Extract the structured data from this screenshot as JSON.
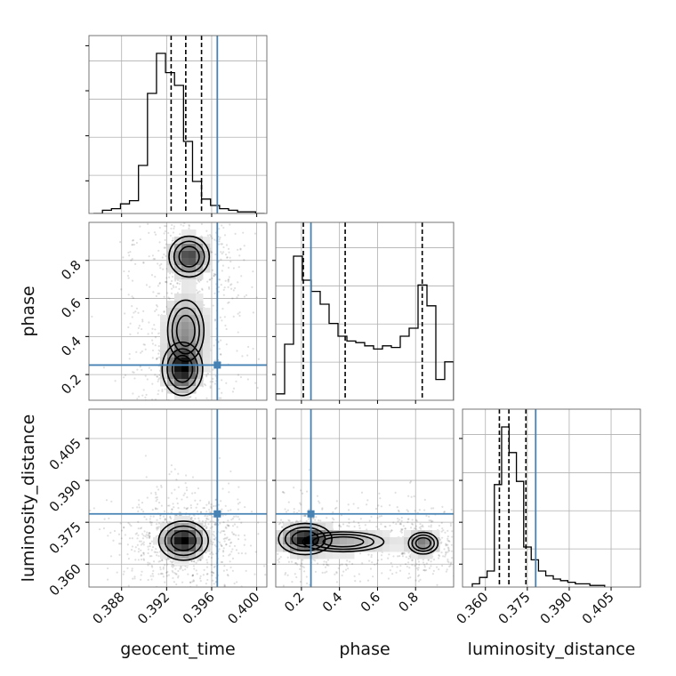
{
  "chart_data": {
    "type": "corner",
    "parameters": [
      "geocent_time",
      "phase",
      "luminosity_distance"
    ],
    "labels": {
      "geocent_time": "geocent_time",
      "phase": "phase",
      "luminosity_distance": "luminosity_distance"
    },
    "ranges": {
      "geocent_time": [
        0.3851,
        0.4009
      ],
      "phase": [
        0.065,
        1.0
      ],
      "luminosity_distance": [
        0.3518,
        0.4155
      ]
    },
    "ticks": {
      "geocent_time": [
        0.388,
        0.392,
        0.396,
        0.4
      ],
      "phase": [
        0.2,
        0.4,
        0.6,
        0.8
      ],
      "luminosity_distance": [
        0.36,
        0.375,
        0.39,
        0.405
      ]
    },
    "tick_labels": {
      "geocent_time": [
        "0.388",
        "0.392",
        "0.396",
        "0.400"
      ],
      "phase": [
        "0.2",
        "0.4",
        "0.6",
        "0.8"
      ],
      "luminosity_distance": [
        "0.360",
        "0.375",
        "0.390",
        "0.405"
      ]
    },
    "truths": {
      "geocent_time": 0.3965,
      "phase": 0.25,
      "luminosity_distance": 0.378
    },
    "quantiles": {
      "geocent_time": [
        0.3924,
        0.3937,
        0.3951
      ],
      "phase": [
        0.21,
        0.43,
        0.835
      ],
      "luminosity_distance": [
        0.365,
        0.3684,
        0.3745
      ]
    },
    "histograms": {
      "geocent_time": {
        "edges": [
          0.3855,
          0.3863,
          0.3871,
          0.3879,
          0.3887,
          0.3895,
          0.3903,
          0.3911,
          0.3919,
          0.3927,
          0.3935,
          0.3943,
          0.3951,
          0.3959,
          0.3967,
          0.3975,
          0.3983,
          0.3991,
          0.3999,
          0.4007
        ],
        "counts": [
          0,
          2,
          3,
          6,
          8,
          30,
          75,
          100,
          88,
          80,
          45,
          20,
          9,
          5,
          3,
          2,
          1,
          1,
          0
        ],
        "max": 100
      },
      "phase": {
        "edges": [
          0.065,
          0.1117,
          0.1585,
          0.2053,
          0.252,
          0.2987,
          0.3455,
          0.3923,
          0.439,
          0.4857,
          0.5325,
          0.5793,
          0.626,
          0.6728,
          0.7195,
          0.7662,
          0.813,
          0.8598,
          0.9065,
          0.9532,
          1.0
        ],
        "counts": [
          4,
          35,
          90,
          75,
          68,
          60,
          48,
          40,
          37,
          36,
          34,
          32,
          34,
          33,
          40,
          45,
          72,
          59,
          13,
          24
        ],
        "max": 100
      },
      "luminosity_distance": {
        "edges": [
          0.3553,
          0.3579,
          0.3606,
          0.3632,
          0.3658,
          0.3685,
          0.3711,
          0.3737,
          0.3764,
          0.379,
          0.3816,
          0.3843,
          0.3869,
          0.3895,
          0.3922,
          0.3948,
          0.3974,
          0.4001,
          0.4027
        ],
        "counts": [
          2,
          6,
          10,
          64,
          100,
          84,
          66,
          25,
          17,
          10,
          7,
          5,
          4,
          3,
          2,
          2,
          1,
          1
        ],
        "max": 100
      }
    },
    "hist2d": {
      "geocent_time__phase": {
        "blobs": [
          {
            "cx": 0.3934,
            "cy": 0.23,
            "sx": 0.0009,
            "sy": 0.07,
            "w": 1.0
          },
          {
            "cx": 0.3937,
            "cy": 0.43,
            "sx": 0.0012,
            "sy": 0.12,
            "w": 0.45
          },
          {
            "cx": 0.394,
            "cy": 0.82,
            "sx": 0.001,
            "sy": 0.06,
            "w": 0.8
          }
        ]
      },
      "geocent_time__luminosity_distance": {
        "blobs": [
          {
            "cx": 0.3935,
            "cy": 0.3684,
            "sx": 0.0011,
            "sy": 0.0035,
            "w": 1.0
          }
        ]
      },
      "phase__luminosity_distance": {
        "blobs": [
          {
            "cx": 0.22,
            "cy": 0.369,
            "sx": 0.07,
            "sy": 0.0028,
            "w": 1.0
          },
          {
            "cx": 0.42,
            "cy": 0.368,
            "sx": 0.18,
            "sy": 0.003,
            "w": 0.35
          },
          {
            "cx": 0.84,
            "cy": 0.3675,
            "sx": 0.05,
            "sy": 0.0025,
            "w": 0.6
          }
        ]
      }
    },
    "colors": {
      "truth": "#4682b4",
      "line": "#000000",
      "grid": "#b0b0b0"
    },
    "grid": true,
    "quantile_style": "dashed"
  }
}
